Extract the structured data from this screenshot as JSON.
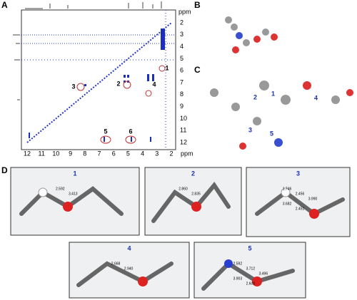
{
  "panels": {
    "A": {
      "label": "A",
      "x_axis_unit": "ppm",
      "y_axis_unit": "ppm",
      "x_ticks": [
        12,
        11,
        10,
        9,
        8,
        7,
        6,
        5,
        4,
        3,
        2
      ],
      "y_ticks": [
        2,
        3,
        4,
        5,
        6,
        7,
        8,
        9,
        10,
        11,
        12
      ],
      "peak_labels": [
        "1",
        "2",
        "3",
        "4",
        "5",
        "6"
      ]
    },
    "B": {
      "label": "B"
    },
    "C": {
      "label": "C",
      "region_labels": [
        "1",
        "2",
        "3",
        "4",
        "5"
      ]
    },
    "D": {
      "label": "D",
      "subpanels": [
        {
          "label": "1",
          "distances": [
            "2.592",
            "3.413"
          ]
        },
        {
          "label": "2",
          "distances": [
            "2.860",
            "2.835"
          ]
        },
        {
          "label": "3",
          "distances": [
            "1.746",
            "2.456",
            "3.990",
            "3.682",
            "2.451"
          ]
        },
        {
          "label": "4",
          "distances": [
            "2.668",
            "2.940"
          ]
        },
        {
          "label": "5",
          "distances": [
            "2.592",
            "3.712",
            "3.496",
            "3.903",
            "2.600"
          ]
        }
      ]
    }
  }
}
